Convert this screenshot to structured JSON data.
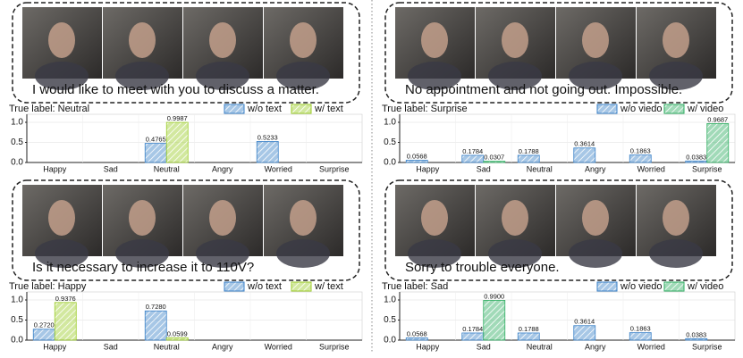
{
  "chart_data": [
    {
      "type": "bar",
      "caption": "I would like to meet with you to discuss a matter.",
      "title": "True label: Neutral",
      "categories": [
        "Happy",
        "Sad",
        "Neutral",
        "Angry",
        "Worried",
        "Surprise"
      ],
      "series": [
        {
          "name": "w/o text",
          "color": "#3b82c8",
          "values": [
            0,
            0,
            0.4765,
            0,
            0.5233,
            0
          ],
          "value_labels": [
            null,
            null,
            "0.4765",
            null,
            "0.5233",
            null
          ]
        },
        {
          "name": "w/ text",
          "color": "#9ccc2a",
          "values": [
            0,
            0,
            0.9987,
            0,
            0,
            0
          ],
          "value_labels": [
            null,
            null,
            "0.9987",
            null,
            null,
            null
          ]
        }
      ],
      "ylim": [
        0,
        1.2
      ],
      "yticks": [
        {
          "value": 0,
          "label": "0.0"
        },
        {
          "value": 0.5,
          "label": "0.5"
        },
        {
          "value": 1,
          "label": "1.0"
        }
      ],
      "grid": true
    },
    {
      "type": "bar",
      "caption": "No appointment and not going out. Impossible.",
      "title": "True label: Surprise",
      "categories": [
        "Happy",
        "Sad",
        "Neutral",
        "Angry",
        "Worried",
        "Surprise"
      ],
      "series": [
        {
          "name": "w/o viedo",
          "color": "#3b82c8",
          "values": [
            0.0568,
            0.1784,
            0.1788,
            0.3614,
            0.1863,
            0.0383
          ],
          "value_labels": [
            "0.0568",
            "0.1784",
            "0.1788",
            "0.3614",
            "0.1863",
            "0.0383"
          ]
        },
        {
          "name": "w/ video",
          "color": "#2fae62",
          "values": [
            0,
            0.0307,
            0,
            0,
            0,
            0.9687
          ],
          "value_labels": [
            null,
            "0.0307",
            null,
            null,
            null,
            "0.9687"
          ]
        }
      ],
      "ylim": [
        0,
        1.2
      ],
      "yticks": [
        {
          "value": 0,
          "label": "0.0"
        },
        {
          "value": 0.5,
          "label": "0.5"
        },
        {
          "value": 1,
          "label": "1.0"
        }
      ],
      "grid": true
    },
    {
      "type": "bar",
      "caption": "Is it necessary to increase it to 110V?",
      "title": "True label: Happy",
      "categories": [
        "Happy",
        "Sad",
        "Neutral",
        "Angry",
        "Worried",
        "Surprise"
      ],
      "series": [
        {
          "name": "w/o text",
          "color": "#3b82c8",
          "values": [
            0.272,
            0,
            0.728,
            0,
            0,
            0
          ],
          "value_labels": [
            "0.2720",
            null,
            "0.7280",
            null,
            null,
            null
          ]
        },
        {
          "name": "w/ text",
          "color": "#9ccc2a",
          "values": [
            0.9376,
            0,
            0.0599,
            0,
            0,
            0
          ],
          "value_labels": [
            "0.9376",
            null,
            "0.0599",
            null,
            null,
            null
          ]
        }
      ],
      "ylim": [
        0,
        1.2
      ],
      "yticks": [
        {
          "value": 0,
          "label": "0.0"
        },
        {
          "value": 0.5,
          "label": "0.5"
        },
        {
          "value": 1,
          "label": "1.0"
        }
      ],
      "grid": true
    },
    {
      "type": "bar",
      "caption": "Sorry to trouble everyone.",
      "title": "True label: Sad",
      "categories": [
        "Happy",
        "Sad",
        "Neutral",
        "Angry",
        "Worried",
        "Surprise"
      ],
      "series": [
        {
          "name": "w/o viedo",
          "color": "#3b82c8",
          "values": [
            0.0568,
            0.1784,
            0.1788,
            0.3614,
            0.1863,
            0.0383
          ],
          "value_labels": [
            "0.0568",
            "0.1784",
            "0.1788",
            "0.3614",
            "0.1863",
            "0.0383"
          ]
        },
        {
          "name": "w/ video",
          "color": "#2fae62",
          "values": [
            0,
            0.99,
            0,
            0,
            0,
            0
          ],
          "value_labels": [
            null,
            "0.9900",
            null,
            null,
            null,
            null
          ]
        }
      ],
      "ylim": [
        0,
        1.2
      ],
      "yticks": [
        {
          "value": 0,
          "label": "0.0"
        },
        {
          "value": 0.5,
          "label": "0.5"
        },
        {
          "value": 1,
          "label": "1.0"
        }
      ],
      "grid": true
    }
  ]
}
